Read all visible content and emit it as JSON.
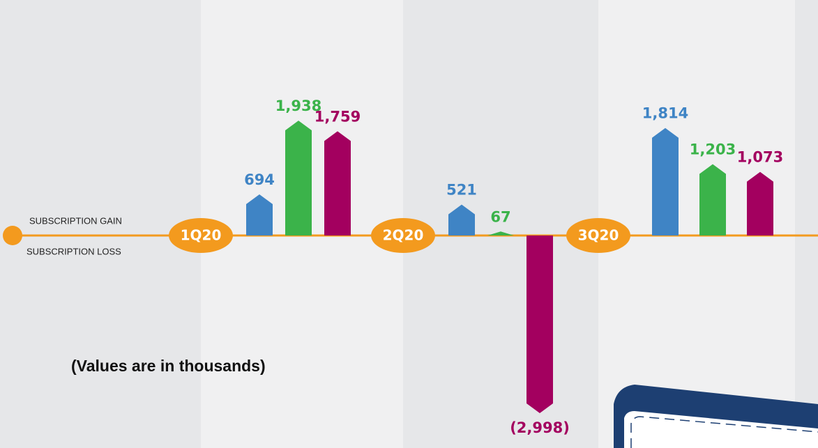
{
  "chart_data": {
    "type": "bar",
    "categories": [
      "1Q20",
      "2Q20",
      "3Q20"
    ],
    "series": [
      {
        "color": "#3f84c5",
        "values": [
          694,
          521,
          1814
        ],
        "value_labels": [
          "694",
          "521",
          "1,814"
        ]
      },
      {
        "color": "#3bb34a",
        "values": [
          1938,
          67,
          1203
        ],
        "value_labels": [
          "1,938",
          "67",
          "1,203"
        ]
      },
      {
        "color": "#a3005f",
        "values": [
          1759,
          -2998,
          1073
        ],
        "value_labels": [
          "1,759",
          "(2,998)",
          "1,073"
        ]
      }
    ],
    "gain_label": "SUBSCRIPTION GAIN",
    "loss_label": "SUBSCRIPTION LOSS",
    "note": "(Values are in thousands)",
    "baseline_color": "#f39a1e"
  }
}
